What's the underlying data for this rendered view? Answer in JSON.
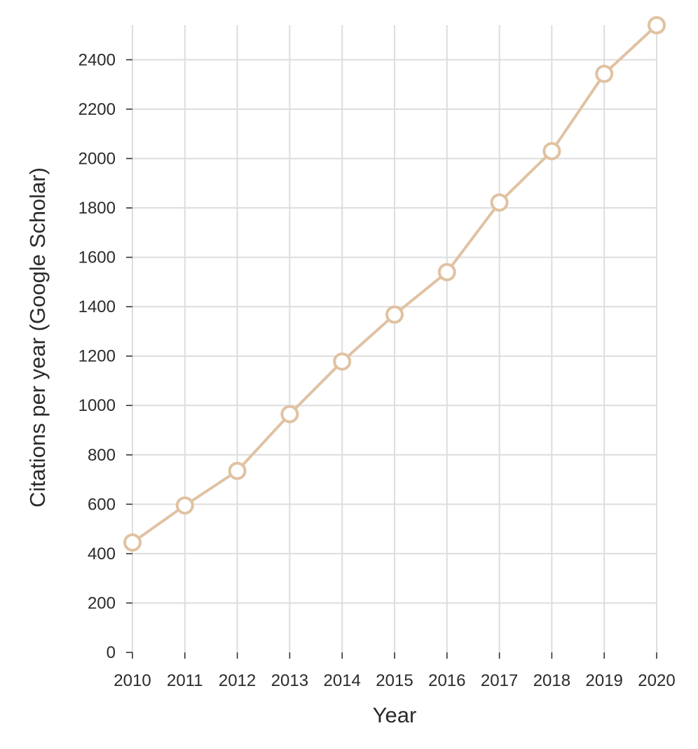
{
  "chart_data": {
    "type": "line",
    "title": "",
    "xlabel": "Year",
    "ylabel": "Citations per year (Google Scholar)",
    "x": [
      2010,
      2011,
      2012,
      2013,
      2014,
      2015,
      2016,
      2017,
      2018,
      2019,
      2020
    ],
    "series": [
      {
        "values": [
          445,
          595,
          735,
          965,
          1178,
          1368,
          1540,
          1822,
          2030,
          2343,
          2540
        ],
        "color": "#e0c2a2",
        "marker": "hollow-circle"
      }
    ],
    "xticks": [
      "2010",
      "2011",
      "2012",
      "2013",
      "2014",
      "2015",
      "2016",
      "2017",
      "2018",
      "2019",
      "2020"
    ],
    "yticks": [
      "0",
      "200",
      "400",
      "600",
      "800",
      "1000",
      "1200",
      "1400",
      "1600",
      "1800",
      "2000",
      "2200",
      "2400"
    ],
    "xlim": [
      2010,
      2020
    ],
    "ylim": [
      0,
      2540
    ],
    "grid": true,
    "legend": false,
    "colors": {
      "grid": "#dddddd",
      "axis": "#333333",
      "text": "#2b2b2b"
    }
  }
}
